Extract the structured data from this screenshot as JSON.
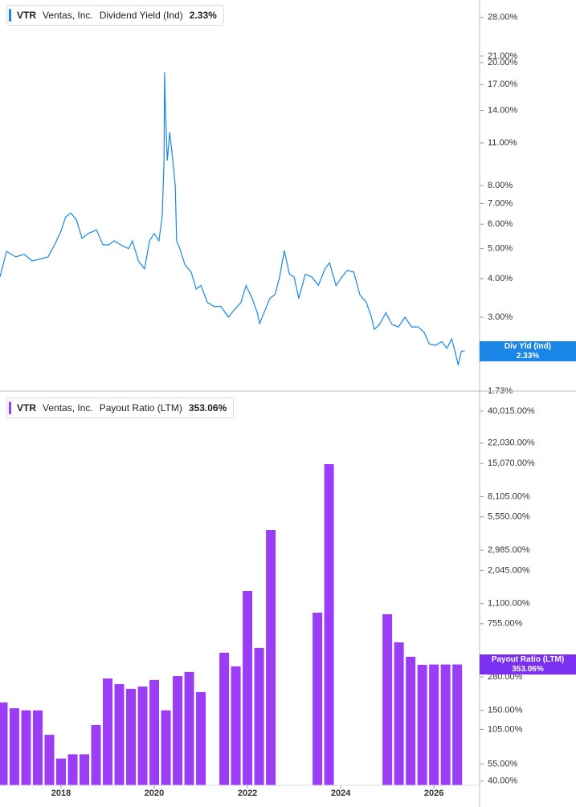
{
  "chart_data": [
    {
      "type": "line",
      "ticker": "VTR",
      "company": "Ventas, Inc.",
      "current": {
        "label": "Div Yld (Ind)",
        "value": 2.33,
        "value_label": "2.33%"
      },
      "log_scale": true,
      "xlim": [
        2016.69,
        2026.98
      ],
      "ylim": [
        1.73,
        31.9
      ],
      "yticks": [
        {
          "value": 28,
          "label": "28.00%"
        },
        {
          "value": 21,
          "label": "21.00%"
        },
        {
          "value": 20,
          "label": "20.00%"
        },
        {
          "value": 17,
          "label": "17.00%"
        },
        {
          "value": 14,
          "label": "14.00%"
        },
        {
          "value": 11,
          "label": "11.00%"
        },
        {
          "value": 8,
          "label": "8.00%"
        },
        {
          "value": 7,
          "label": "7.00%"
        },
        {
          "value": 6,
          "label": "6.00%"
        },
        {
          "value": 5,
          "label": "5.00%"
        },
        {
          "value": 4,
          "label": "4.00%"
        },
        {
          "value": 3,
          "label": "3.00%"
        },
        {
          "value": 1.73,
          "label": "1.73%"
        }
      ],
      "x": [
        2016.69,
        2016.83,
        2017.03,
        2017.21,
        2017.38,
        2017.55,
        2017.72,
        2017.86,
        2018.0,
        2018.1,
        2018.21,
        2018.33,
        2018.45,
        2018.59,
        2018.76,
        2018.9,
        2019.02,
        2019.14,
        2019.28,
        2019.45,
        2019.53,
        2019.66,
        2019.79,
        2019.9,
        2020.0,
        2020.1,
        2020.17,
        2020.21,
        2020.22,
        2020.24,
        2020.28,
        2020.33,
        2020.38,
        2020.45,
        2020.48,
        2020.55,
        2020.66,
        2020.79,
        2020.9,
        2021.0,
        2021.14,
        2021.28,
        2021.43,
        2021.59,
        2021.72,
        2021.86,
        2021.97,
        2022.1,
        2022.21,
        2022.26,
        2022.38,
        2022.48,
        2022.59,
        2022.69,
        2022.79,
        2022.9,
        2023.0,
        2023.1,
        2023.24,
        2023.38,
        2023.52,
        2023.66,
        2023.76,
        2023.9,
        2024.03,
        2024.14,
        2024.28,
        2024.41,
        2024.55,
        2024.66,
        2024.72,
        2024.83,
        2024.97,
        2025.1,
        2025.24,
        2025.38,
        2025.52,
        2025.66,
        2025.79,
        2025.9,
        2026.03,
        2026.17,
        2026.28,
        2026.38,
        2026.45,
        2026.52,
        2026.59,
        2026.66
      ],
      "series": [
        {
          "name": "Dividend Yield (Ind)",
          "color": "#1a86e8",
          "values": [
            4.05,
            4.9,
            4.7,
            4.8,
            4.56,
            4.63,
            4.7,
            5.14,
            5.7,
            6.34,
            6.52,
            6.2,
            5.4,
            5.6,
            5.75,
            5.14,
            5.14,
            5.3,
            5.14,
            5.0,
            5.3,
            4.56,
            4.3,
            5.3,
            5.6,
            5.3,
            6.34,
            9.65,
            18.6,
            13.8,
            9.65,
            11.9,
            10.2,
            8.05,
            5.3,
            5.0,
            4.43,
            4.2,
            3.7,
            3.8,
            3.35,
            3.25,
            3.25,
            3.0,
            3.17,
            3.35,
            3.8,
            3.45,
            3.1,
            2.86,
            3.17,
            3.45,
            3.55,
            4.05,
            4.93,
            4.13,
            4.05,
            3.45,
            4.13,
            4.05,
            3.8,
            4.3,
            4.5,
            3.8,
            4.05,
            4.25,
            4.2,
            3.55,
            3.35,
            3.0,
            2.74,
            2.84,
            3.1,
            2.84,
            2.79,
            3.0,
            2.79,
            2.79,
            2.68,
            2.46,
            2.43,
            2.5,
            2.38,
            2.55,
            2.33,
            2.1,
            2.33,
            2.33
          ]
        }
      ]
    },
    {
      "type": "bar",
      "ticker": "VTR",
      "company": "Ventas, Inc.",
      "current": {
        "value": 353.06,
        "value_label": "353.06%"
      },
      "log_scale": true,
      "xlim": [
        2016.69,
        2026.98
      ],
      "ylim": [
        37,
        51600
      ],
      "xticks": [
        2018,
        2020,
        2022,
        2024,
        2026
      ],
      "yticks": [
        {
          "value": 40015,
          "label": "40,015.00%"
        },
        {
          "value": 22030,
          "label": "22,030.00%"
        },
        {
          "value": 15070,
          "label": "15,070.00%"
        },
        {
          "value": 8105,
          "label": "8,105.00%"
        },
        {
          "value": 5550,
          "label": "5,550.00%"
        },
        {
          "value": 2985,
          "label": "2,985.00%"
        },
        {
          "value": 2045,
          "label": "2,045.00%"
        },
        {
          "value": 1100,
          "label": "1,100.00%"
        },
        {
          "value": 755,
          "label": "755.00%"
        },
        {
          "value": 280,
          "label": "280.00%"
        },
        {
          "value": 150,
          "label": "150.00%"
        },
        {
          "value": 105,
          "label": "105.00%"
        },
        {
          "value": 55,
          "label": "55.00%"
        },
        {
          "value": 40,
          "label": "40.00%"
        }
      ],
      "x": [
        2016.75,
        2017.0,
        2017.25,
        2017.5,
        2017.75,
        2018.0,
        2018.25,
        2018.5,
        2018.75,
        2019.0,
        2019.25,
        2019.5,
        2019.75,
        2020.0,
        2020.25,
        2020.5,
        2020.75,
        2021.0,
        2021.25,
        2021.5,
        2021.75,
        2022.0,
        2022.25,
        2022.5,
        2022.75,
        2023.0,
        2023.25,
        2023.5,
        2023.75,
        2024.0,
        2024.25,
        2024.5,
        2024.75,
        2025.0,
        2025.25,
        2025.5,
        2025.75,
        2026.0,
        2026.25,
        2026.5
      ],
      "series": [
        {
          "name": "Payout Ratio (LTM)",
          "color": "#9b3cf6",
          "values": [
            174,
            156,
            150,
            150,
            95,
            61,
            66,
            66,
            114,
            272,
            245,
            224,
            234,
            264,
            150,
            284,
            307,
            211,
            null,
            440,
            341,
            1393,
            481,
            4350,
            null,
            null,
            null,
            929,
            14860,
            null,
            null,
            null,
            null,
            902,
            534,
            408,
            351,
            353,
            353,
            353.06
          ]
        }
      ]
    }
  ]
}
